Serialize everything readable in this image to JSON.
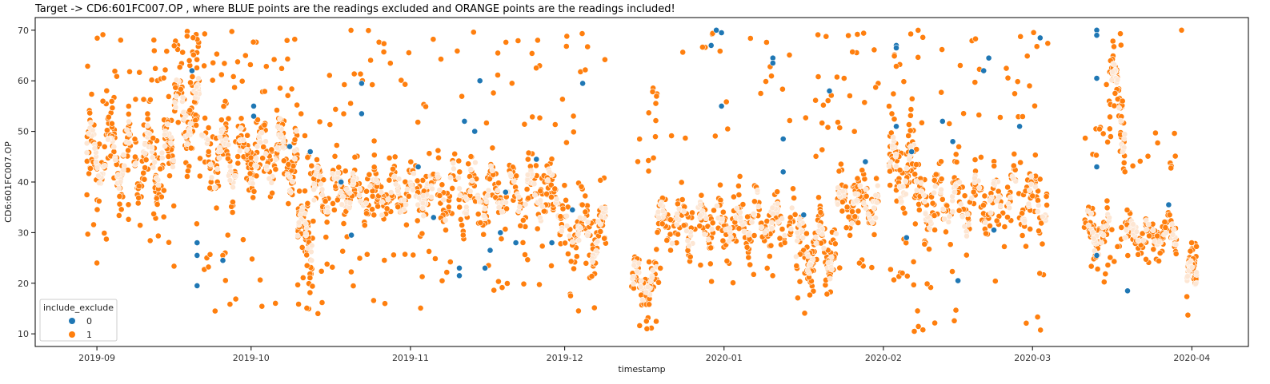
{
  "chart_data": {
    "type": "scatter",
    "title": "Target -> CD6:601FC007.OP , where BLUE points are the readings excluded and ORANGE points are the readings included!",
    "xlabel": "timestamp",
    "ylabel": "CD6:601FC007.OP",
    "x_range": [
      "2019-08-20",
      "2020-04-12"
    ],
    "ylim": [
      7.5,
      72.5
    ],
    "x_ticks": [
      "2019-09",
      "2019-10",
      "2019-11",
      "2019-12",
      "2020-01",
      "2020-02",
      "2020-03",
      "2020-04"
    ],
    "y_ticks": [
      10,
      20,
      30,
      40,
      50,
      60,
      70
    ],
    "grid": false,
    "legend": {
      "title": "include_exclude",
      "placement": "lower-left",
      "entries": [
        {
          "label": "0",
          "color": "#1f77b4"
        },
        {
          "label": "1",
          "color": "#ff7f0e"
        }
      ]
    },
    "series": [
      {
        "name": "0",
        "color": "#1f77b4",
        "points": [
          [
            "2019-09-19",
            62
          ],
          [
            "2019-09-20",
            28
          ],
          [
            "2019-09-20",
            25.5
          ],
          [
            "2019-09-20",
            19.5
          ],
          [
            "2019-09-25",
            24.5
          ],
          [
            "2019-10-01",
            53
          ],
          [
            "2019-10-01",
            55
          ],
          [
            "2019-10-08",
            47
          ],
          [
            "2019-10-12",
            46
          ],
          [
            "2019-10-18",
            40
          ],
          [
            "2019-10-20",
            29.5
          ],
          [
            "2019-10-22",
            53.5
          ],
          [
            "2019-10-22",
            59.5
          ],
          [
            "2019-11-02",
            43
          ],
          [
            "2019-11-05",
            33
          ],
          [
            "2019-11-10",
            21.5
          ],
          [
            "2019-11-10",
            23
          ],
          [
            "2019-11-11",
            52
          ],
          [
            "2019-11-13",
            50
          ],
          [
            "2019-11-14",
            60
          ],
          [
            "2019-11-15",
            23
          ],
          [
            "2019-11-16",
            26.5
          ],
          [
            "2019-11-18",
            30
          ],
          [
            "2019-11-19",
            38
          ],
          [
            "2019-11-21",
            28
          ],
          [
            "2019-11-25",
            44.5
          ],
          [
            "2019-11-28",
            28
          ],
          [
            "2019-12-02",
            34.5
          ],
          [
            "2019-12-04",
            59.5
          ],
          [
            "2019-12-29",
            67
          ],
          [
            "2019-12-30",
            70
          ],
          [
            "2019-12-31",
            69.5
          ],
          [
            "2019-12-31",
            55
          ],
          [
            "2020-01-10",
            64.5
          ],
          [
            "2020-01-10",
            63.5
          ],
          [
            "2020-01-12",
            48.5
          ],
          [
            "2020-01-12",
            42
          ],
          [
            "2020-01-16",
            33.5
          ],
          [
            "2020-01-21",
            58
          ],
          [
            "2020-01-28",
            44
          ],
          [
            "2020-02-03",
            67
          ],
          [
            "2020-02-03",
            66.5
          ],
          [
            "2020-02-03",
            51
          ],
          [
            "2020-02-05",
            29
          ],
          [
            "2020-02-06",
            46
          ],
          [
            "2020-02-12",
            52
          ],
          [
            "2020-02-14",
            48
          ],
          [
            "2020-02-15",
            20.5
          ],
          [
            "2020-02-20",
            62
          ],
          [
            "2020-02-21",
            64.5
          ],
          [
            "2020-02-22",
            30.5
          ],
          [
            "2020-02-27",
            51
          ],
          [
            "2020-03-02",
            68.5
          ],
          [
            "2020-03-13",
            70
          ],
          [
            "2020-03-13",
            69
          ],
          [
            "2020-03-13",
            60.5
          ],
          [
            "2020-03-13",
            43
          ],
          [
            "2020-03-13",
            25.5
          ],
          [
            "2020-03-19",
            18.5
          ],
          [
            "2020-03-27",
            35.5
          ]
        ]
      },
      {
        "name": "1",
        "color": "#ff7f0e",
        "segments": [
          {
            "start": "2019-08-30",
            "end": "2019-09-16",
            "base": 45,
            "amp": 5,
            "spread": 7,
            "low": 28,
            "high": 70,
            "density": 230
          },
          {
            "start": "2019-09-16",
            "end": "2019-09-21",
            "base": 54,
            "amp": 5,
            "spread": 9,
            "low": 15,
            "high": 70,
            "density": 90
          },
          {
            "start": "2019-09-21",
            "end": "2019-10-10",
            "base": 45,
            "amp": 5,
            "spread": 7,
            "low": 14.5,
            "high": 70,
            "density": 240
          },
          {
            "start": "2019-10-10",
            "end": "2019-10-13",
            "base": 30,
            "amp": 4,
            "spread": 6,
            "low": 14,
            "high": 56,
            "density": 60
          },
          {
            "start": "2019-10-13",
            "end": "2019-11-05",
            "base": 38,
            "amp": 3,
            "spread": 6,
            "low": 15,
            "high": 70,
            "density": 240
          },
          {
            "start": "2019-11-05",
            "end": "2019-11-30",
            "base": 38,
            "amp": 4,
            "spread": 6,
            "low": 17,
            "high": 70,
            "density": 230
          },
          {
            "start": "2019-11-30",
            "end": "2019-12-09",
            "base": 30,
            "amp": 4,
            "spread": 7,
            "low": 14,
            "high": 70,
            "density": 100
          },
          {
            "start": "2019-12-14",
            "end": "2019-12-19",
            "base": 20,
            "amp": 3,
            "spread": 4,
            "low": 11,
            "high": 64,
            "density": 70
          },
          {
            "start": "2019-12-19",
            "end": "2020-01-15",
            "base": 32,
            "amp": 3,
            "spread": 5,
            "low": 20,
            "high": 70,
            "density": 230
          },
          {
            "start": "2020-01-15",
            "end": "2020-01-23",
            "base": 27,
            "amp": 4,
            "spread": 6,
            "low": 14,
            "high": 70,
            "density": 110
          },
          {
            "start": "2020-01-23",
            "end": "2020-01-31",
            "base": 36,
            "amp": 3,
            "spread": 5,
            "low": 18,
            "high": 70,
            "density": 100
          },
          {
            "start": "2020-02-02",
            "end": "2020-02-07",
            "base": 42,
            "amp": 5,
            "spread": 8,
            "low": 19,
            "high": 70,
            "density": 80
          },
          {
            "start": "2020-02-07",
            "end": "2020-03-04",
            "base": 36,
            "amp": 4,
            "spread": 7,
            "low": 10.5,
            "high": 70,
            "density": 240
          },
          {
            "start": "2020-03-11",
            "end": "2020-03-16",
            "base": 30,
            "amp": 3,
            "spread": 4,
            "low": 20,
            "high": 60,
            "density": 60
          },
          {
            "start": "2020-03-16",
            "end": "2020-03-19",
            "base": 55,
            "amp": 8,
            "spread": 8,
            "low": 17.5,
            "high": 70,
            "density": 60
          },
          {
            "start": "2020-03-19",
            "end": "2020-03-29",
            "base": 30,
            "amp": 2,
            "spread": 3,
            "low": 24,
            "high": 50,
            "density": 100
          },
          {
            "start": "2020-03-31",
            "end": "2020-04-02",
            "base": 21,
            "amp": 3,
            "spread": 3,
            "low": 10,
            "high": 28,
            "density": 50
          }
        ],
        "points": [
          [
            "2019-09-01",
            24
          ],
          [
            "2019-09-24",
            14.5
          ],
          [
            "2019-10-14",
            14
          ],
          [
            "2019-12-17",
            11
          ],
          [
            "2020-02-07",
            10.5
          ],
          [
            "2020-03-30",
            70
          ]
        ]
      }
    ]
  }
}
